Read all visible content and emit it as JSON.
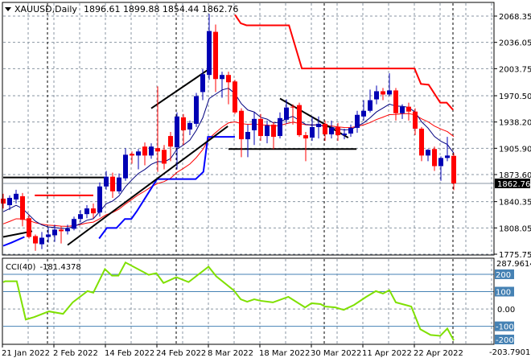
{
  "header": {
    "symbol_label": "XAUUSD,Daily",
    "ohlc_label": "1896.61 1899.88 1854.44 1862.76",
    "menu_icon": "triangle-down-icon"
  },
  "colors": {
    "bull": "#0000b4",
    "bear": "#ff0000",
    "grid": "#8a96a3",
    "fast_ma": "#00007f",
    "slow_ma": "#ff0000",
    "resistance": "#ff0000",
    "support": "#0000ff",
    "trendline": "#000000",
    "cci_line": "#7fe000",
    "cci_levels": "#4682b4"
  },
  "chart_data": [
    {
      "type": "candlestick",
      "title": "XAUUSD,Daily",
      "ylim": [
        1774.76,
        2084.17
      ],
      "grid": true,
      "y_ticks": [
        "2068.35",
        "2036.05",
        "2003.75",
        "1970.50",
        "1938.20",
        "1905.90",
        "1873.60",
        "1840.35",
        "1808.05",
        "1775.75"
      ],
      "current_price": "1862.76",
      "x_labels": [
        {
          "index": 0,
          "label": "21 Jan 2022"
        },
        {
          "index": 8,
          "label": "2 Feb 2022"
        },
        {
          "index": 16,
          "label": "14 Feb 2022"
        },
        {
          "index": 24,
          "label": "24 Feb 2022"
        },
        {
          "index": 32,
          "label": "8 Mar 2022"
        },
        {
          "index": 40,
          "label": "18 Mar 2022"
        },
        {
          "index": 48,
          "label": "30 Mar 2022"
        },
        {
          "index": 56,
          "label": "11 Apr 2022"
        },
        {
          "index": 64,
          "label": "22 Apr 2022"
        }
      ],
      "period_separators": [
        7,
        27,
        50,
        70
      ],
      "ohlc": [
        [
          1844,
          1850,
          1832,
          1838
        ],
        [
          1836,
          1848,
          1830,
          1845
        ],
        [
          1843,
          1855,
          1838,
          1850
        ],
        [
          1847,
          1851,
          1810,
          1818
        ],
        [
          1820,
          1824,
          1795,
          1797
        ],
        [
          1798,
          1800,
          1780,
          1789
        ],
        [
          1788,
          1803,
          1782,
          1796
        ],
        [
          1797,
          1808,
          1790,
          1800
        ],
        [
          1799,
          1812,
          1791,
          1806
        ],
        [
          1806,
          1810,
          1789,
          1804
        ],
        [
          1804,
          1812,
          1800,
          1807
        ],
        [
          1807,
          1822,
          1805,
          1819
        ],
        [
          1819,
          1830,
          1815,
          1825
        ],
        [
          1825,
          1836,
          1820,
          1832
        ],
        [
          1832,
          1838,
          1820,
          1826
        ],
        [
          1827,
          1864,
          1822,
          1859
        ],
        [
          1859,
          1878,
          1855,
          1871
        ],
        [
          1871,
          1876,
          1845,
          1853
        ],
        [
          1853,
          1875,
          1850,
          1870
        ],
        [
          1869,
          1906,
          1866,
          1898
        ],
        [
          1899,
          1902,
          1887,
          1897
        ],
        [
          1897,
          1905,
          1880,
          1902
        ],
        [
          1908,
          1913,
          1885,
          1897
        ],
        [
          1897,
          1912,
          1893,
          1908
        ],
        [
          1906,
          1982,
          1877,
          1902
        ],
        [
          1904,
          1910,
          1880,
          1887
        ],
        [
          1921,
          1926,
          1890,
          1908
        ],
        [
          1907,
          1950,
          1880,
          1945
        ],
        [
          1944,
          1948,
          1910,
          1928
        ],
        [
          1929,
          1940,
          1922,
          1937
        ],
        [
          1936,
          1974,
          1932,
          1970
        ],
        [
          1975,
          2003,
          1965,
          1997
        ],
        [
          1996,
          2071,
          1990,
          2050
        ],
        [
          2049,
          2058,
          1975,
          1991
        ],
        [
          1991,
          2000,
          1968,
          1996
        ],
        [
          1996,
          2000,
          1960,
          1987
        ],
        [
          1988,
          1990,
          1948,
          1950
        ],
        [
          1952,
          1955,
          1895,
          1917
        ],
        [
          1917,
          1935,
          1895,
          1926
        ],
        [
          1928,
          1950,
          1910,
          1942
        ],
        [
          1942,
          1948,
          1915,
          1921
        ],
        [
          1921,
          1940,
          1912,
          1934
        ],
        [
          1935,
          1938,
          1905,
          1920
        ],
        [
          1921,
          1950,
          1918,
          1943
        ],
        [
          1941,
          1966,
          1936,
          1956
        ],
        [
          1957,
          1960,
          1935,
          1956
        ],
        [
          1959,
          1962,
          1920,
          1922
        ],
        [
          1922,
          1926,
          1890,
          1918
        ],
        [
          1919,
          1945,
          1915,
          1932
        ],
        [
          1932,
          1945,
          1918,
          1936
        ],
        [
          1936,
          1940,
          1915,
          1923
        ],
        [
          1923,
          1940,
          1918,
          1931
        ],
        [
          1932,
          1937,
          1915,
          1922
        ],
        [
          1922,
          1930,
          1917,
          1924
        ],
        [
          1924,
          1935,
          1920,
          1931
        ],
        [
          1931,
          1952,
          1925,
          1947
        ],
        [
          1945,
          1965,
          1940,
          1952
        ],
        [
          1952,
          1978,
          1950,
          1965
        ],
        [
          1966,
          1983,
          1960,
          1976
        ],
        [
          1976,
          1980,
          1965,
          1972
        ],
        [
          1972,
          1998,
          1970,
          1977
        ],
        [
          1977,
          1980,
          1940,
          1949
        ],
        [
          1949,
          1960,
          1942,
          1957
        ],
        [
          1957,
          1962,
          1940,
          1951
        ],
        [
          1951,
          1955,
          1922,
          1930
        ],
        [
          1930,
          1932,
          1890,
          1897
        ],
        [
          1897,
          1905,
          1890,
          1904
        ],
        [
          1905,
          1908,
          1878,
          1884
        ],
        [
          1884,
          1896,
          1866,
          1894
        ],
        [
          1894,
          1920,
          1890,
          1897
        ],
        [
          1896.61,
          1899.88,
          1854.44,
          1862.76
        ]
      ],
      "resistance_line": [
        [
          36,
          2070
        ],
        [
          36.9,
          2059.5
        ],
        [
          37.8,
          2057
        ],
        [
          44.4,
          2057
        ],
        [
          46.4,
          2004
        ],
        [
          63.9,
          2004
        ],
        [
          64.9,
          1985
        ],
        [
          66.1,
          1984
        ],
        [
          67.9,
          1962
        ],
        [
          68.9,
          1962
        ],
        [
          69.9,
          1953
        ]
      ],
      "resistance_segment_early": [
        [
          4.9,
          1848
        ],
        [
          14,
          1848
        ]
      ],
      "support_line": [
        [
          0,
          1786
        ],
        [
          1.3,
          1790
        ],
        [
          3.3,
          1797
        ]
      ],
      "support_line_2": [
        [
          14.9,
          1795
        ],
        [
          16.1,
          1808
        ],
        [
          17.6,
          1808
        ],
        [
          18.9,
          1819
        ],
        [
          19.9,
          1819
        ],
        [
          20.8,
          1829
        ],
        [
          23.9,
          1868
        ],
        [
          29.9,
          1868
        ],
        [
          31.1,
          1877
        ],
        [
          31.8,
          1920
        ],
        [
          36,
          1920
        ]
      ],
      "trendlines": [
        [
          [
            0,
            1797
          ],
          [
            4.5,
            1804
          ]
        ],
        [
          [
            10,
            1787
          ],
          [
            34.9,
            1933
          ]
        ],
        [
          [
            23,
            1955
          ],
          [
            32.3,
            2005
          ]
        ],
        [
          [
            43,
            1967
          ],
          [
            53.6,
            1919
          ]
        ],
        [
          [
            35,
            1905
          ],
          [
            54.9,
            1905
          ]
        ],
        [
          [
            0,
            1870
          ],
          [
            15.8,
            1870
          ]
        ]
      ]
    },
    {
      "type": "line",
      "title": "CCI(40)",
      "value_label": "-181.4378",
      "ylim": [
        -203.7901,
        287.9614
      ],
      "range_labels": [
        "287.9614",
        "-203.7901"
      ],
      "levels": [
        200,
        100,
        -100,
        -200
      ],
      "level_labels": [
        "200",
        "100",
        "-100",
        "-200"
      ],
      "zero_label": "0.00",
      "points": [
        [
          0,
          154
        ],
        [
          0.3,
          160
        ],
        [
          2.1,
          160
        ],
        [
          3.5,
          -61
        ],
        [
          4.8,
          -47
        ],
        [
          7.1,
          -14
        ],
        [
          9.3,
          -28
        ],
        [
          10.8,
          38
        ],
        [
          13.1,
          103
        ],
        [
          14,
          94
        ],
        [
          15.8,
          230
        ],
        [
          16.9,
          192
        ],
        [
          17.9,
          192
        ],
        [
          19,
          268
        ],
        [
          22.6,
          197
        ],
        [
          23.8,
          206
        ],
        [
          24.9,
          150
        ],
        [
          26.9,
          183
        ],
        [
          28.8,
          155
        ],
        [
          31.9,
          244
        ],
        [
          33.1,
          188
        ],
        [
          35.8,
          108
        ],
        [
          36.9,
          56
        ],
        [
          37.9,
          42
        ],
        [
          39,
          56
        ],
        [
          40,
          47
        ],
        [
          41.9,
          38
        ],
        [
          44.3,
          70
        ],
        [
          46.9,
          9
        ],
        [
          47.9,
          33
        ],
        [
          49.3,
          28
        ],
        [
          50,
          14
        ],
        [
          51.6,
          9
        ],
        [
          52.9,
          -5
        ],
        [
          54.5,
          23
        ],
        [
          56.4,
          70
        ],
        [
          57.9,
          103
        ],
        [
          59,
          89
        ],
        [
          60,
          108
        ],
        [
          61,
          38
        ],
        [
          63.4,
          14
        ],
        [
          64.8,
          -117
        ],
        [
          66.4,
          -150
        ],
        [
          67.9,
          -155
        ],
        [
          69,
          -113
        ],
        [
          70,
          -181.4
        ]
      ]
    }
  ]
}
